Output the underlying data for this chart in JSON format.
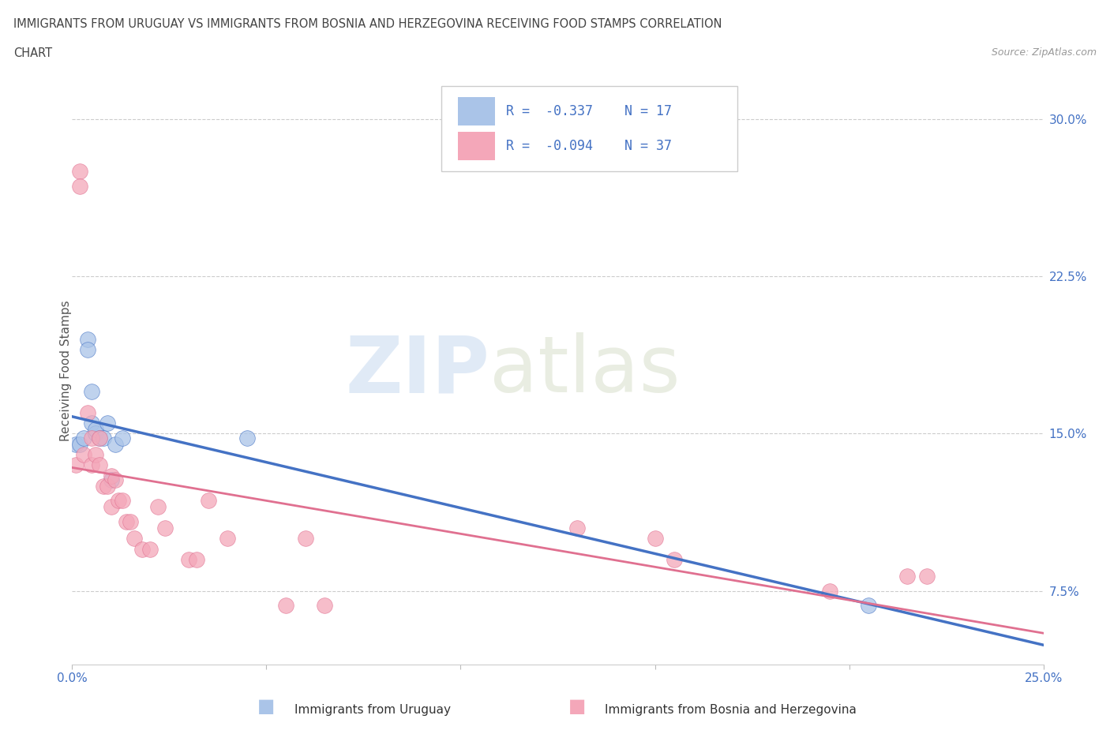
{
  "title_line1": "IMMIGRANTS FROM URUGUAY VS IMMIGRANTS FROM BOSNIA AND HERZEGOVINA RECEIVING FOOD STAMPS CORRELATION",
  "title_line2": "CHART",
  "source": "Source: ZipAtlas.com",
  "ylabel": "Receiving Food Stamps",
  "xlim": [
    0.0,
    0.25
  ],
  "ylim": [
    0.04,
    0.32
  ],
  "xtick_positions": [
    0.0,
    0.05,
    0.1,
    0.15,
    0.2,
    0.25
  ],
  "xtick_labels": [
    "0.0%",
    "",
    "",
    "",
    "",
    "25.0%"
  ],
  "ytick_right": [
    0.075,
    0.15,
    0.225,
    0.3
  ],
  "ytick_right_labels": [
    "7.5%",
    "15.0%",
    "22.5%",
    "30.0%"
  ],
  "watermark_zip": "ZIP",
  "watermark_atlas": "atlas",
  "legend_r1": "R =  -0.337",
  "legend_n1": "N = 17",
  "legend_r2": "R =  -0.094",
  "legend_n2": "N = 37",
  "color_uruguay": "#aac4e8",
  "color_bosnia": "#f4a7b9",
  "color_line_uruguay": "#4472c4",
  "color_line_bosnia": "#e07090",
  "color_axis_blue": "#4472c4",
  "grid_color": "#cccccc",
  "uruguay_x": [
    0.001,
    0.002,
    0.003,
    0.004,
    0.004,
    0.005,
    0.005,
    0.006,
    0.006,
    0.007,
    0.008,
    0.009,
    0.01,
    0.011,
    0.013,
    0.045,
    0.205
  ],
  "uruguay_y": [
    0.145,
    0.145,
    0.148,
    0.195,
    0.19,
    0.17,
    0.155,
    0.15,
    0.152,
    0.148,
    0.148,
    0.155,
    0.128,
    0.145,
    0.148,
    0.148,
    0.068
  ],
  "bosnia_x": [
    0.001,
    0.002,
    0.002,
    0.003,
    0.004,
    0.005,
    0.005,
    0.006,
    0.007,
    0.007,
    0.008,
    0.009,
    0.01,
    0.01,
    0.011,
    0.012,
    0.013,
    0.014,
    0.015,
    0.016,
    0.018,
    0.02,
    0.022,
    0.024,
    0.03,
    0.032,
    0.035,
    0.04,
    0.055,
    0.06,
    0.065,
    0.13,
    0.15,
    0.155,
    0.195,
    0.215,
    0.22
  ],
  "bosnia_y": [
    0.135,
    0.275,
    0.268,
    0.14,
    0.16,
    0.148,
    0.135,
    0.14,
    0.135,
    0.148,
    0.125,
    0.125,
    0.13,
    0.115,
    0.128,
    0.118,
    0.118,
    0.108,
    0.108,
    0.1,
    0.095,
    0.095,
    0.115,
    0.105,
    0.09,
    0.09,
    0.118,
    0.1,
    0.068,
    0.1,
    0.068,
    0.105,
    0.1,
    0.09,
    0.075,
    0.082,
    0.082
  ]
}
